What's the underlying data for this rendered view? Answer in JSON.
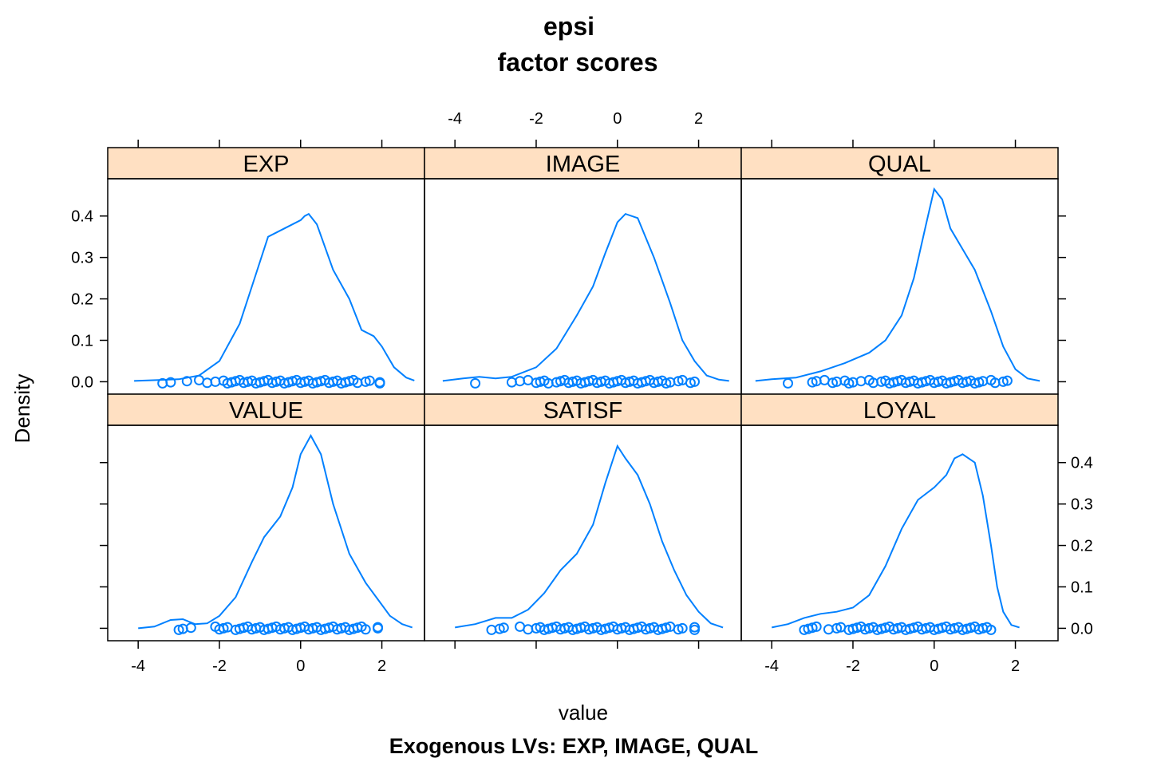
{
  "chart_data": {
    "type": "lattice-density",
    "title": "epsi",
    "subtitle": "factor scores",
    "xlabel": "value",
    "ylabel": "Density",
    "caption": "Exogenous LVs:  EXP, IMAGE, QUAL",
    "xlim": [
      -4.75,
      3.05
    ],
    "ylim": [
      -0.03,
      0.49
    ],
    "xticks": [
      -4,
      -2,
      0,
      2
    ],
    "yticks": [
      0.0,
      0.1,
      0.2,
      0.3,
      0.4
    ],
    "colors": {
      "strip": "#ffe0c2",
      "line": "#0080ff",
      "frame": "#000000"
    },
    "layout": {
      "columns": 3,
      "rows": 2
    },
    "panels": [
      {
        "name": "EXP",
        "curve": [
          [
            -4.1,
            0.002
          ],
          [
            -3.5,
            0.004
          ],
          [
            -3,
            0.006
          ],
          [
            -2.5,
            0.015
          ],
          [
            -2,
            0.05
          ],
          [
            -1.5,
            0.14
          ],
          [
            -1.2,
            0.23
          ],
          [
            -0.8,
            0.35
          ],
          [
            -0.4,
            0.37
          ],
          [
            0,
            0.39
          ],
          [
            0.1,
            0.4
          ],
          [
            0.2,
            0.405
          ],
          [
            0.4,
            0.38
          ],
          [
            0.8,
            0.27
          ],
          [
            1.2,
            0.2
          ],
          [
            1.5,
            0.125
          ],
          [
            1.8,
            0.11
          ],
          [
            2,
            0.085
          ],
          [
            2.3,
            0.035
          ],
          [
            2.6,
            0.01
          ],
          [
            2.8,
            0.003
          ]
        ],
        "points": [
          -3.4,
          -3.2,
          -2.8,
          -2.5,
          -2.3,
          -2.1,
          -1.9,
          -1.8,
          -1.7,
          -1.6,
          -1.5,
          -1.4,
          -1.3,
          -1.2,
          -1.1,
          -1.0,
          -0.9,
          -0.8,
          -0.7,
          -0.6,
          -0.5,
          -0.4,
          -0.3,
          -0.2,
          -0.1,
          0.0,
          0.1,
          0.2,
          0.3,
          0.4,
          0.5,
          0.6,
          0.7,
          0.8,
          0.9,
          1.0,
          1.1,
          1.2,
          1.3,
          1.4,
          1.6,
          1.7,
          1.95,
          1.95
        ]
      },
      {
        "name": "IMAGE",
        "curve": [
          [
            -4.3,
            0.002
          ],
          [
            -3.8,
            0.008
          ],
          [
            -3.4,
            0.012
          ],
          [
            -3,
            0.008
          ],
          [
            -2.6,
            0.012
          ],
          [
            -2,
            0.035
          ],
          [
            -1.5,
            0.08
          ],
          [
            -1,
            0.16
          ],
          [
            -0.6,
            0.23
          ],
          [
            -0.3,
            0.31
          ],
          [
            0,
            0.385
          ],
          [
            0.2,
            0.405
          ],
          [
            0.5,
            0.395
          ],
          [
            0.9,
            0.3
          ],
          [
            1.3,
            0.19
          ],
          [
            1.6,
            0.1
          ],
          [
            1.9,
            0.05
          ],
          [
            2.2,
            0.015
          ],
          [
            2.5,
            0.005
          ],
          [
            2.75,
            0.002
          ]
        ],
        "points": [
          -3.5,
          -2.6,
          -2.4,
          -2.2,
          -2.0,
          -1.9,
          -1.8,
          -1.7,
          -1.5,
          -1.4,
          -1.3,
          -1.2,
          -1.1,
          -1.0,
          -0.9,
          -0.8,
          -0.7,
          -0.6,
          -0.5,
          -0.4,
          -0.3,
          -0.2,
          -0.1,
          0.0,
          0.1,
          0.2,
          0.3,
          0.4,
          0.5,
          0.6,
          0.7,
          0.8,
          0.9,
          1.0,
          1.1,
          1.2,
          1.3,
          1.5,
          1.6,
          1.8,
          1.9
        ]
      },
      {
        "name": "QUAL",
        "curve": [
          [
            -4.4,
            0.002
          ],
          [
            -4,
            0.006
          ],
          [
            -3.4,
            0.01
          ],
          [
            -2.8,
            0.025
          ],
          [
            -2.2,
            0.045
          ],
          [
            -1.6,
            0.07
          ],
          [
            -1.2,
            0.1
          ],
          [
            -0.8,
            0.16
          ],
          [
            -0.5,
            0.25
          ],
          [
            -0.2,
            0.38
          ],
          [
            0,
            0.465
          ],
          [
            0.2,
            0.44
          ],
          [
            0.4,
            0.37
          ],
          [
            0.7,
            0.32
          ],
          [
            1.0,
            0.27
          ],
          [
            1.4,
            0.17
          ],
          [
            1.7,
            0.085
          ],
          [
            2.0,
            0.03
          ],
          [
            2.3,
            0.008
          ],
          [
            2.6,
            0.002
          ]
        ],
        "points": [
          -3.6,
          -3.0,
          -2.9,
          -2.7,
          -2.5,
          -2.4,
          -2.2,
          -2.1,
          -2.0,
          -1.8,
          -1.6,
          -1.5,
          -1.3,
          -1.2,
          -1.1,
          -1.0,
          -0.9,
          -0.8,
          -0.7,
          -0.6,
          -0.5,
          -0.4,
          -0.3,
          -0.2,
          -0.1,
          0.0,
          0.1,
          0.2,
          0.3,
          0.4,
          0.5,
          0.6,
          0.7,
          0.8,
          0.9,
          1.0,
          1.1,
          1.2,
          1.4,
          1.5,
          1.7,
          1.8
        ]
      },
      {
        "name": "VALUE",
        "curve": [
          [
            -4.0,
            0.0
          ],
          [
            -3.6,
            0.004
          ],
          [
            -3.2,
            0.02
          ],
          [
            -2.9,
            0.022
          ],
          [
            -2.6,
            0.01
          ],
          [
            -2.3,
            0.012
          ],
          [
            -2.0,
            0.03
          ],
          [
            -1.6,
            0.075
          ],
          [
            -1.2,
            0.16
          ],
          [
            -0.9,
            0.22
          ],
          [
            -0.5,
            0.27
          ],
          [
            -0.2,
            0.34
          ],
          [
            0.0,
            0.42
          ],
          [
            0.25,
            0.465
          ],
          [
            0.5,
            0.42
          ],
          [
            0.8,
            0.3
          ],
          [
            1.2,
            0.18
          ],
          [
            1.6,
            0.11
          ],
          [
            1.9,
            0.07
          ],
          [
            2.2,
            0.03
          ],
          [
            2.5,
            0.01
          ],
          [
            2.75,
            0.002
          ]
        ],
        "points": [
          -3.0,
          -2.9,
          -2.7,
          -2.1,
          -2.0,
          -1.9,
          -1.8,
          -1.6,
          -1.5,
          -1.4,
          -1.3,
          -1.2,
          -1.1,
          -1.0,
          -0.9,
          -0.8,
          -0.7,
          -0.6,
          -0.5,
          -0.4,
          -0.3,
          -0.2,
          -0.1,
          0.0,
          0.1,
          0.2,
          0.3,
          0.4,
          0.5,
          0.6,
          0.7,
          0.8,
          0.9,
          1.0,
          1.1,
          1.2,
          1.3,
          1.4,
          1.5,
          1.6,
          1.9,
          1.9
        ]
      },
      {
        "name": "SATISF",
        "curve": [
          [
            -4.0,
            0.002
          ],
          [
            -3.5,
            0.01
          ],
          [
            -3.0,
            0.025
          ],
          [
            -2.6,
            0.025
          ],
          [
            -2.2,
            0.045
          ],
          [
            -1.8,
            0.085
          ],
          [
            -1.4,
            0.14
          ],
          [
            -1.0,
            0.18
          ],
          [
            -0.6,
            0.25
          ],
          [
            -0.3,
            0.35
          ],
          [
            -0.1,
            0.41
          ],
          [
            0.0,
            0.44
          ],
          [
            0.2,
            0.41
          ],
          [
            0.5,
            0.37
          ],
          [
            0.8,
            0.3
          ],
          [
            1.1,
            0.21
          ],
          [
            1.4,
            0.14
          ],
          [
            1.7,
            0.08
          ],
          [
            2.0,
            0.04
          ],
          [
            2.3,
            0.012
          ],
          [
            2.6,
            0.002
          ]
        ],
        "points": [
          -3.1,
          -2.9,
          -2.8,
          -2.4,
          -2.2,
          -2.0,
          -1.9,
          -1.8,
          -1.7,
          -1.6,
          -1.5,
          -1.4,
          -1.3,
          -1.2,
          -1.1,
          -1.0,
          -0.9,
          -0.8,
          -0.7,
          -0.6,
          -0.5,
          -0.4,
          -0.3,
          -0.2,
          -0.1,
          0.0,
          0.1,
          0.2,
          0.3,
          0.4,
          0.5,
          0.6,
          0.7,
          0.8,
          0.9,
          1.0,
          1.1,
          1.2,
          1.3,
          1.5,
          1.6,
          1.9,
          1.9
        ]
      },
      {
        "name": "LOYAL",
        "curve": [
          [
            -4.0,
            0.002
          ],
          [
            -3.6,
            0.01
          ],
          [
            -3.2,
            0.025
          ],
          [
            -2.8,
            0.035
          ],
          [
            -2.4,
            0.04
          ],
          [
            -2.0,
            0.05
          ],
          [
            -1.6,
            0.08
          ],
          [
            -1.2,
            0.15
          ],
          [
            -0.8,
            0.24
          ],
          [
            -0.4,
            0.31
          ],
          [
            0.0,
            0.34
          ],
          [
            0.3,
            0.37
          ],
          [
            0.5,
            0.41
          ],
          [
            0.7,
            0.42
          ],
          [
            1.0,
            0.4
          ],
          [
            1.2,
            0.32
          ],
          [
            1.4,
            0.2
          ],
          [
            1.55,
            0.1
          ],
          [
            1.7,
            0.04
          ],
          [
            1.9,
            0.008
          ],
          [
            2.1,
            0.002
          ]
        ],
        "points": [
          -3.2,
          -3.1,
          -3.0,
          -2.9,
          -2.6,
          -2.4,
          -2.3,
          -2.1,
          -2.0,
          -1.9,
          -1.8,
          -1.7,
          -1.6,
          -1.5,
          -1.4,
          -1.3,
          -1.2,
          -1.1,
          -1.0,
          -0.9,
          -0.8,
          -0.7,
          -0.6,
          -0.5,
          -0.4,
          -0.3,
          -0.2,
          -0.1,
          0.0,
          0.1,
          0.2,
          0.3,
          0.4,
          0.5,
          0.6,
          0.7,
          0.8,
          0.9,
          1.0,
          1.1,
          1.2,
          1.3,
          1.4
        ]
      }
    ]
  }
}
